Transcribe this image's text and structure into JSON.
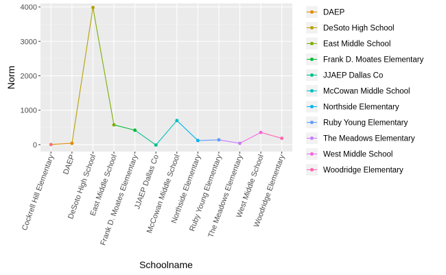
{
  "chart_data": {
    "type": "line",
    "xlabel": "Schoolname",
    "ylabel": "Norm",
    "ylim": [
      -200,
      4100
    ],
    "yticks": [
      0,
      1000,
      2000,
      3000,
      4000
    ],
    "grid": true,
    "legend_placement": "right",
    "categories": [
      "Cockrell Hill Elementary",
      "DAEP",
      "DeSoto High School",
      "East Middle School",
      "Frank D. Moates Elementary",
      "JJAEP Dallas Co",
      "McCowan Middle School",
      "Northside Elementary",
      "Ruby Young Elementary",
      "The Meadows Elementary",
      "West Middle School",
      "Woodridge Elementary"
    ],
    "values": [
      5,
      40,
      3980,
      575,
      420,
      -10,
      700,
      120,
      140,
      40,
      355,
      185
    ],
    "colors": [
      "#F8766D",
      "#DE8C00",
      "#B79F00",
      "#7CAE00",
      "#00BA38",
      "#00C08B",
      "#00BFC4",
      "#00B4F0",
      "#619CFF",
      "#C77CFF",
      "#F564E3",
      "#FF64B0"
    ],
    "legend_items": [
      {
        "label": "DAEP",
        "color": "#DE8C00"
      },
      {
        "label": "DeSoto High School",
        "color": "#B79F00"
      },
      {
        "label": "East Middle School",
        "color": "#7CAE00"
      },
      {
        "label": "Frank D. Moates Elementary",
        "color": "#00BA38"
      },
      {
        "label": "JJAEP Dallas Co",
        "color": "#00C08B"
      },
      {
        "label": "McCowan Middle School",
        "color": "#00BFC4"
      },
      {
        "label": "Northside Elementary",
        "color": "#00B4F0"
      },
      {
        "label": "Ruby Young Elementary",
        "color": "#619CFF"
      },
      {
        "label": "The Meadows Elementary",
        "color": "#C77CFF"
      },
      {
        "label": "West Middle School",
        "color": "#F564E3"
      },
      {
        "label": "Woodridge Elementary",
        "color": "#FF64B0"
      }
    ]
  }
}
